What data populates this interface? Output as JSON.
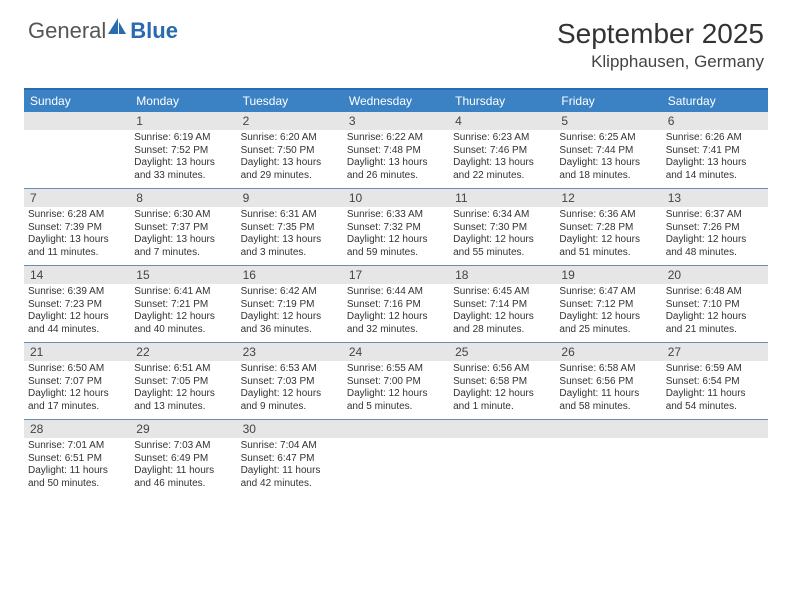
{
  "brand": {
    "word1": "General",
    "word2": "Blue",
    "logo_color": "#2a6ab0"
  },
  "title": "September 2025",
  "location": "Klipphausen, Germany",
  "header_bg": "#3b82c4",
  "border_color": "#2a6ab0",
  "day_row_bg": "#e6e6e6",
  "day_names": [
    "Sunday",
    "Monday",
    "Tuesday",
    "Wednesday",
    "Thursday",
    "Friday",
    "Saturday"
  ],
  "weeks": [
    [
      null,
      {
        "n": "1",
        "sr": "6:19 AM",
        "ss": "7:52 PM",
        "dl1": "Daylight: 13 hours",
        "dl2": "and 33 minutes."
      },
      {
        "n": "2",
        "sr": "6:20 AM",
        "ss": "7:50 PM",
        "dl1": "Daylight: 13 hours",
        "dl2": "and 29 minutes."
      },
      {
        "n": "3",
        "sr": "6:22 AM",
        "ss": "7:48 PM",
        "dl1": "Daylight: 13 hours",
        "dl2": "and 26 minutes."
      },
      {
        "n": "4",
        "sr": "6:23 AM",
        "ss": "7:46 PM",
        "dl1": "Daylight: 13 hours",
        "dl2": "and 22 minutes."
      },
      {
        "n": "5",
        "sr": "6:25 AM",
        "ss": "7:44 PM",
        "dl1": "Daylight: 13 hours",
        "dl2": "and 18 minutes."
      },
      {
        "n": "6",
        "sr": "6:26 AM",
        "ss": "7:41 PM",
        "dl1": "Daylight: 13 hours",
        "dl2": "and 14 minutes."
      }
    ],
    [
      {
        "n": "7",
        "sr": "6:28 AM",
        "ss": "7:39 PM",
        "dl1": "Daylight: 13 hours",
        "dl2": "and 11 minutes."
      },
      {
        "n": "8",
        "sr": "6:30 AM",
        "ss": "7:37 PM",
        "dl1": "Daylight: 13 hours",
        "dl2": "and 7 minutes."
      },
      {
        "n": "9",
        "sr": "6:31 AM",
        "ss": "7:35 PM",
        "dl1": "Daylight: 13 hours",
        "dl2": "and 3 minutes."
      },
      {
        "n": "10",
        "sr": "6:33 AM",
        "ss": "7:32 PM",
        "dl1": "Daylight: 12 hours",
        "dl2": "and 59 minutes."
      },
      {
        "n": "11",
        "sr": "6:34 AM",
        "ss": "7:30 PM",
        "dl1": "Daylight: 12 hours",
        "dl2": "and 55 minutes."
      },
      {
        "n": "12",
        "sr": "6:36 AM",
        "ss": "7:28 PM",
        "dl1": "Daylight: 12 hours",
        "dl2": "and 51 minutes."
      },
      {
        "n": "13",
        "sr": "6:37 AM",
        "ss": "7:26 PM",
        "dl1": "Daylight: 12 hours",
        "dl2": "and 48 minutes."
      }
    ],
    [
      {
        "n": "14",
        "sr": "6:39 AM",
        "ss": "7:23 PM",
        "dl1": "Daylight: 12 hours",
        "dl2": "and 44 minutes."
      },
      {
        "n": "15",
        "sr": "6:41 AM",
        "ss": "7:21 PM",
        "dl1": "Daylight: 12 hours",
        "dl2": "and 40 minutes."
      },
      {
        "n": "16",
        "sr": "6:42 AM",
        "ss": "7:19 PM",
        "dl1": "Daylight: 12 hours",
        "dl2": "and 36 minutes."
      },
      {
        "n": "17",
        "sr": "6:44 AM",
        "ss": "7:16 PM",
        "dl1": "Daylight: 12 hours",
        "dl2": "and 32 minutes."
      },
      {
        "n": "18",
        "sr": "6:45 AM",
        "ss": "7:14 PM",
        "dl1": "Daylight: 12 hours",
        "dl2": "and 28 minutes."
      },
      {
        "n": "19",
        "sr": "6:47 AM",
        "ss": "7:12 PM",
        "dl1": "Daylight: 12 hours",
        "dl2": "and 25 minutes."
      },
      {
        "n": "20",
        "sr": "6:48 AM",
        "ss": "7:10 PM",
        "dl1": "Daylight: 12 hours",
        "dl2": "and 21 minutes."
      }
    ],
    [
      {
        "n": "21",
        "sr": "6:50 AM",
        "ss": "7:07 PM",
        "dl1": "Daylight: 12 hours",
        "dl2": "and 17 minutes."
      },
      {
        "n": "22",
        "sr": "6:51 AM",
        "ss": "7:05 PM",
        "dl1": "Daylight: 12 hours",
        "dl2": "and 13 minutes."
      },
      {
        "n": "23",
        "sr": "6:53 AM",
        "ss": "7:03 PM",
        "dl1": "Daylight: 12 hours",
        "dl2": "and 9 minutes."
      },
      {
        "n": "24",
        "sr": "6:55 AM",
        "ss": "7:00 PM",
        "dl1": "Daylight: 12 hours",
        "dl2": "and 5 minutes."
      },
      {
        "n": "25",
        "sr": "6:56 AM",
        "ss": "6:58 PM",
        "dl1": "Daylight: 12 hours",
        "dl2": "and 1 minute."
      },
      {
        "n": "26",
        "sr": "6:58 AM",
        "ss": "6:56 PM",
        "dl1": "Daylight: 11 hours",
        "dl2": "and 58 minutes."
      },
      {
        "n": "27",
        "sr": "6:59 AM",
        "ss": "6:54 PM",
        "dl1": "Daylight: 11 hours",
        "dl2": "and 54 minutes."
      }
    ],
    [
      {
        "n": "28",
        "sr": "7:01 AM",
        "ss": "6:51 PM",
        "dl1": "Daylight: 11 hours",
        "dl2": "and 50 minutes."
      },
      {
        "n": "29",
        "sr": "7:03 AM",
        "ss": "6:49 PM",
        "dl1": "Daylight: 11 hours",
        "dl2": "and 46 minutes."
      },
      {
        "n": "30",
        "sr": "7:04 AM",
        "ss": "6:47 PM",
        "dl1": "Daylight: 11 hours",
        "dl2": "and 42 minutes."
      },
      null,
      null,
      null,
      null
    ]
  ]
}
